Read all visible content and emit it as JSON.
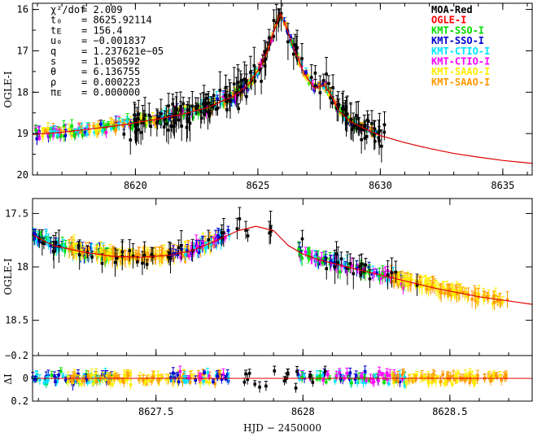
{
  "chart_data": [
    {
      "type": "scatter",
      "name": "full-light-curve",
      "ylabel": "OGLE-I",
      "xlim": [
        8615.8,
        8636.2
      ],
      "ylim": [
        20.0,
        15.85
      ],
      "x_ticks": [
        "8620",
        "8625",
        "8630",
        "8635"
      ],
      "x_tick_values": [
        8620,
        8625,
        8630,
        8635
      ],
      "y_ticks": [
        "16",
        "17",
        "18",
        "19",
        "20"
      ],
      "y_tick_values": [
        16,
        17,
        18,
        19,
        20
      ],
      "params": [
        {
          "label": "χ²/dof",
          "value": "= 2.009"
        },
        {
          "label": "t₀",
          "value": "= 8625.92114"
        },
        {
          "label": "tᴇ",
          "value": "= 156.4"
        },
        {
          "label": "u₀",
          "value": "= −0.001837"
        },
        {
          "label": "q",
          "value": "= 1.237621e−05"
        },
        {
          "label": "s",
          "value": "= 1.050592"
        },
        {
          "label": "θ",
          "value": "= 6.136755"
        },
        {
          "label": "ρ",
          "value": "= 0.000223"
        },
        {
          "label": "πᴇ",
          "value": "= 0.000000"
        }
      ],
      "series": [
        {
          "name": "MOA-Red",
          "color": "#000000"
        },
        {
          "name": "OGLE-I",
          "color": "#ff0000"
        },
        {
          "name": "KMT-SSO-I",
          "color": "#00dd00"
        },
        {
          "name": "KMT-SSO-I",
          "color": "#0000cc"
        },
        {
          "name": "KMT-CTIO-I",
          "color": "#00e5ff"
        },
        {
          "name": "KMT-CTIO-I",
          "color": "#ff00ff"
        },
        {
          "name": "KMT-SAAO-I",
          "color": "#ffee00"
        },
        {
          "name": "KMT-SAAO-I",
          "color": "#ff9900"
        }
      ],
      "model": {
        "color": "#e00000",
        "x": [
          8615.8,
          8617,
          8618,
          8619,
          8620,
          8621,
          8622,
          8623,
          8624,
          8624.6,
          8625.0,
          8625.4,
          8625.7,
          8625.92,
          8626.15,
          8626.5,
          8626.9,
          8627.3,
          8627.7,
          8628.0,
          8628.3,
          8628.8,
          8629.5,
          8630,
          8631,
          8632,
          8633,
          8634,
          8635,
          8636.2
        ],
        "y": [
          19.02,
          18.97,
          18.9,
          18.83,
          18.74,
          18.64,
          18.52,
          18.36,
          18.1,
          17.82,
          17.48,
          17.0,
          16.45,
          16.1,
          16.42,
          17.0,
          17.55,
          17.9,
          17.83,
          18.08,
          18.45,
          18.72,
          18.92,
          19.05,
          19.22,
          19.36,
          19.48,
          19.57,
          19.65,
          19.72
        ]
      }
    },
    {
      "type": "scatter",
      "name": "zoom-light-curve",
      "xlabel": "HJD − 2450000",
      "ylabel": "OGLE-I",
      "xlim": [
        8627.08,
        8628.78
      ],
      "ylim": [
        18.83,
        17.36
      ],
      "x_ticks": [
        "8627.5",
        "8628",
        "8628.5"
      ],
      "x_tick_values": [
        8627.5,
        8628.0,
        8628.5
      ],
      "y_ticks": [
        "17.5",
        "18",
        "18.5"
      ],
      "y_tick_values": [
        17.5,
        18.0,
        18.5
      ],
      "model": {
        "color": "#e00000",
        "x": [
          8627.08,
          8627.15,
          8627.25,
          8627.35,
          8627.45,
          8627.55,
          8627.62,
          8627.7,
          8627.78,
          8627.84,
          8627.9,
          8627.95,
          8628.0,
          8628.05,
          8628.15,
          8628.3,
          8628.45,
          8628.6,
          8628.78
        ],
        "y": [
          17.7,
          17.8,
          17.86,
          17.9,
          17.91,
          17.89,
          17.85,
          17.76,
          17.66,
          17.62,
          17.66,
          17.8,
          17.88,
          17.93,
          18.0,
          18.1,
          18.2,
          18.28,
          18.35
        ]
      }
    },
    {
      "type": "scatter",
      "name": "residuals",
      "ylabel": "ΔI",
      "xlim": [
        8627.08,
        8628.78
      ],
      "ylim": [
        0.2,
        -0.2
      ],
      "y_ticks": [
        "−0.2",
        "0",
        "0.2"
      ],
      "y_tick_values": [
        -0.2,
        0.0,
        0.2
      ],
      "x_tick_values": [
        8627.5,
        8628.0,
        8628.5
      ]
    }
  ]
}
